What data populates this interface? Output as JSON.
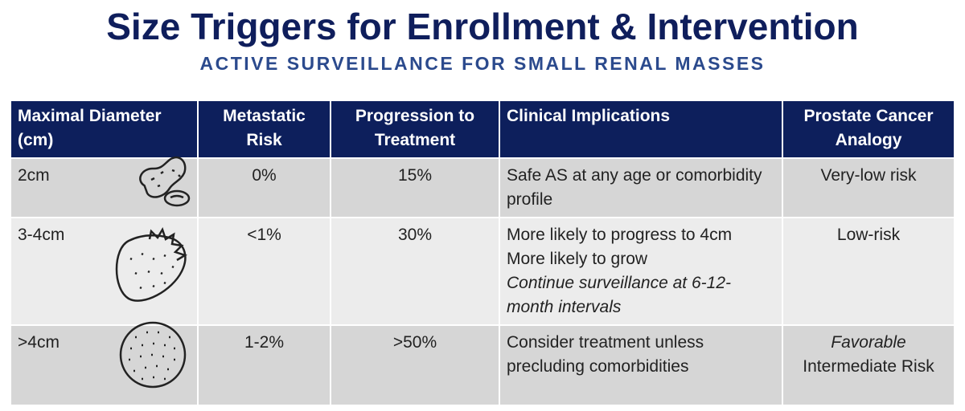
{
  "header": {
    "title": "Size Triggers for Enrollment & Intervention",
    "subtitle": "ACTIVE SURVEILLANCE FOR SMALL RENAL MASSES"
  },
  "table": {
    "columns": [
      "Maximal Diameter (cm)",
      "Metastatic Risk",
      "Progression to Treatment",
      "Clinical Implications",
      "Prostate Cancer Analogy"
    ],
    "rows": [
      [
        "2cm",
        "0%",
        "15%",
        [
          "Safe AS at any age or comorbidity profile"
        ],
        [
          "Very-low risk"
        ]
      ],
      [
        "3-4cm",
        "<1%",
        "30%",
        [
          "More likely to progress to 4cm",
          "More likely to grow",
          {
            "text": "Continue surveillance at 6-12-month intervals",
            "italic": true
          }
        ],
        [
          "Low-risk"
        ]
      ],
      [
        ">4cm",
        "1-2%",
        ">50%",
        [
          "Consider treatment unless precluding comorbidities"
        ],
        [
          {
            "text": "Favorable",
            "italic": true
          },
          "Intermediate Risk"
        ]
      ]
    ]
  }
}
